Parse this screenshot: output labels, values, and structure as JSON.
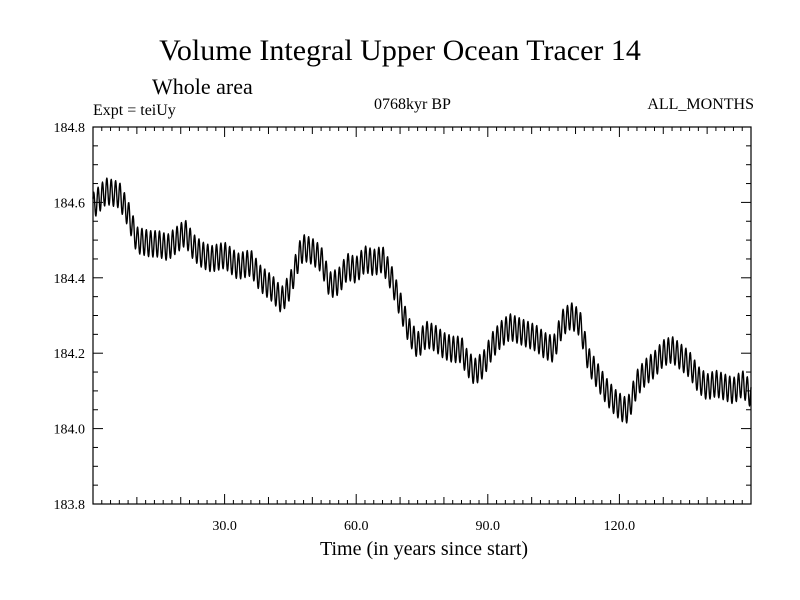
{
  "chart_data": {
    "type": "line",
    "title": "Volume Integral Upper Ocean Tracer 14",
    "subtitle": "Whole area",
    "experiment_label": "Expt = teiUy",
    "period_label": "0768kyr BP",
    "months_label": "ALL_MONTHS",
    "xlabel": "Time (in years since start)",
    "ylabel": "",
    "xlim": [
      0,
      150
    ],
    "ylim": [
      183.8,
      184.8
    ],
    "xticks": [
      30,
      60,
      90,
      120
    ],
    "xtick_labels": [
      "30.0",
      "60.0",
      "90.0",
      "120.0"
    ],
    "yticks": [
      183.8,
      184.0,
      184.2,
      184.4,
      184.6,
      184.8
    ],
    "ytick_labels": [
      "183.8",
      "184.0",
      "184.2",
      "184.4",
      "184.6",
      "184.8"
    ],
    "annual_cycle_amplitude": 0.035,
    "series": [
      {
        "name": "Tracer 14 volume integral",
        "color": "#000000",
        "trend": {
          "x": [
            0,
            3,
            6,
            8,
            10,
            13,
            15,
            17,
            19,
            21,
            23,
            25,
            27,
            30,
            33,
            36,
            38,
            40,
            41,
            43,
            45,
            47,
            48,
            50,
            52,
            54,
            56,
            58,
            60,
            62,
            64,
            66,
            68,
            70,
            72,
            74,
            76,
            78,
            80,
            82,
            84,
            85,
            87,
            89,
            91,
            93,
            95,
            97,
            99,
            101,
            103,
            105,
            107,
            109,
            111,
            113,
            115,
            117,
            119,
            121,
            122,
            124,
            126,
            128,
            130,
            132,
            134,
            136,
            138,
            140,
            142,
            144,
            146,
            148,
            150
          ],
          "y": [
            184.59,
            184.63,
            184.62,
            184.57,
            184.5,
            184.49,
            184.49,
            184.48,
            184.5,
            184.52,
            184.48,
            184.46,
            184.45,
            184.46,
            184.43,
            184.44,
            184.4,
            184.38,
            184.37,
            184.34,
            184.38,
            184.46,
            184.48,
            184.47,
            184.45,
            184.38,
            184.39,
            184.43,
            184.42,
            184.45,
            184.44,
            184.45,
            184.4,
            184.33,
            184.26,
            184.22,
            184.25,
            184.24,
            184.22,
            184.21,
            184.21,
            184.18,
            184.15,
            184.17,
            184.22,
            184.25,
            184.27,
            184.26,
            184.25,
            184.24,
            184.22,
            184.21,
            184.28,
            184.3,
            184.28,
            184.18,
            184.14,
            184.1,
            184.07,
            184.05,
            184.05,
            184.12,
            184.15,
            184.17,
            184.2,
            184.21,
            184.19,
            184.17,
            184.13,
            184.11,
            184.12,
            184.11,
            184.1,
            184.12,
            184.09
          ]
        }
      }
    ]
  }
}
